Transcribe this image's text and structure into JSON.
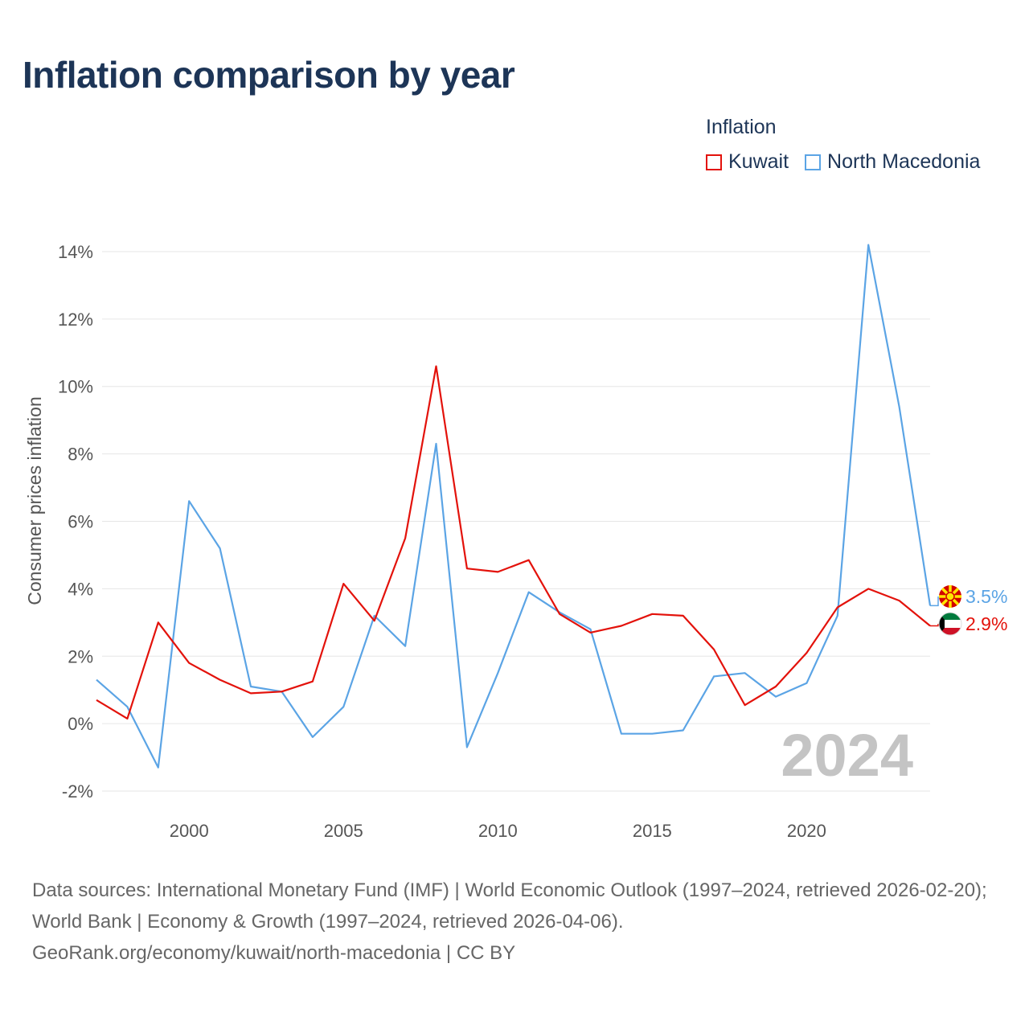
{
  "title": "Inflation comparison by year",
  "legend": {
    "title": "Inflation",
    "items": [
      {
        "label": "Kuwait",
        "color": "#e3120b"
      },
      {
        "label": "North Macedonia",
        "color": "#5ba4e5"
      }
    ]
  },
  "chart_data": {
    "type": "line",
    "title": "Inflation comparison by year",
    "xlabel": "",
    "ylabel": "Consumer prices inflation",
    "xlim": [
      1997,
      2024
    ],
    "ylim": [
      -2.5,
      14.5
    ],
    "x_ticks": [
      2000,
      2005,
      2010,
      2015,
      2020
    ],
    "y_ticks": [
      -2,
      0,
      2,
      4,
      6,
      8,
      10,
      12,
      14
    ],
    "y_tick_labels": [
      "-2%",
      "0%",
      "2%",
      "4%",
      "6%",
      "8%",
      "10%",
      "12%",
      "14%"
    ],
    "grid": true,
    "legend_position": "top-right",
    "x": [
      1997,
      1998,
      1999,
      2000,
      2001,
      2002,
      2003,
      2004,
      2005,
      2006,
      2007,
      2008,
      2009,
      2010,
      2011,
      2012,
      2013,
      2014,
      2015,
      2016,
      2017,
      2018,
      2019,
      2020,
      2021,
      2022,
      2023,
      2024
    ],
    "series": [
      {
        "name": "Kuwait",
        "color": "#e3120b",
        "values": [
          0.7,
          0.15,
          3.0,
          1.8,
          1.3,
          0.9,
          0.95,
          1.25,
          4.15,
          3.05,
          5.5,
          10.6,
          4.6,
          4.5,
          4.85,
          3.25,
          2.7,
          2.9,
          3.25,
          3.2,
          2.2,
          0.55,
          1.1,
          2.1,
          3.45,
          4.0,
          3.65,
          2.9
        ],
        "end_label": "2.9%"
      },
      {
        "name": "North Macedonia",
        "color": "#5ba4e5",
        "values": [
          1.3,
          0.5,
          -1.3,
          6.6,
          5.2,
          1.1,
          0.95,
          -0.4,
          0.5,
          3.2,
          2.3,
          8.3,
          -0.7,
          1.5,
          3.9,
          3.3,
          2.8,
          -0.3,
          -0.3,
          -0.2,
          1.4,
          1.5,
          0.8,
          1.2,
          3.2,
          14.2,
          9.4,
          3.5
        ],
        "end_label": "3.5%"
      }
    ],
    "watermark_year": "2024"
  },
  "footer": {
    "line1": "Data sources: International Monetary Fund (IMF) | World Economic Outlook (1997–2024, retrieved 2026-02-20); World Bank | Economy & Growth (1997–2024, retrieved 2026-04-06).",
    "line2": "GeoRank.org/economy/kuwait/north-macedonia | CC BY"
  },
  "flags": {
    "kuwait": "kuwait-flag-icon",
    "north_macedonia": "north-macedonia-flag-icon"
  }
}
